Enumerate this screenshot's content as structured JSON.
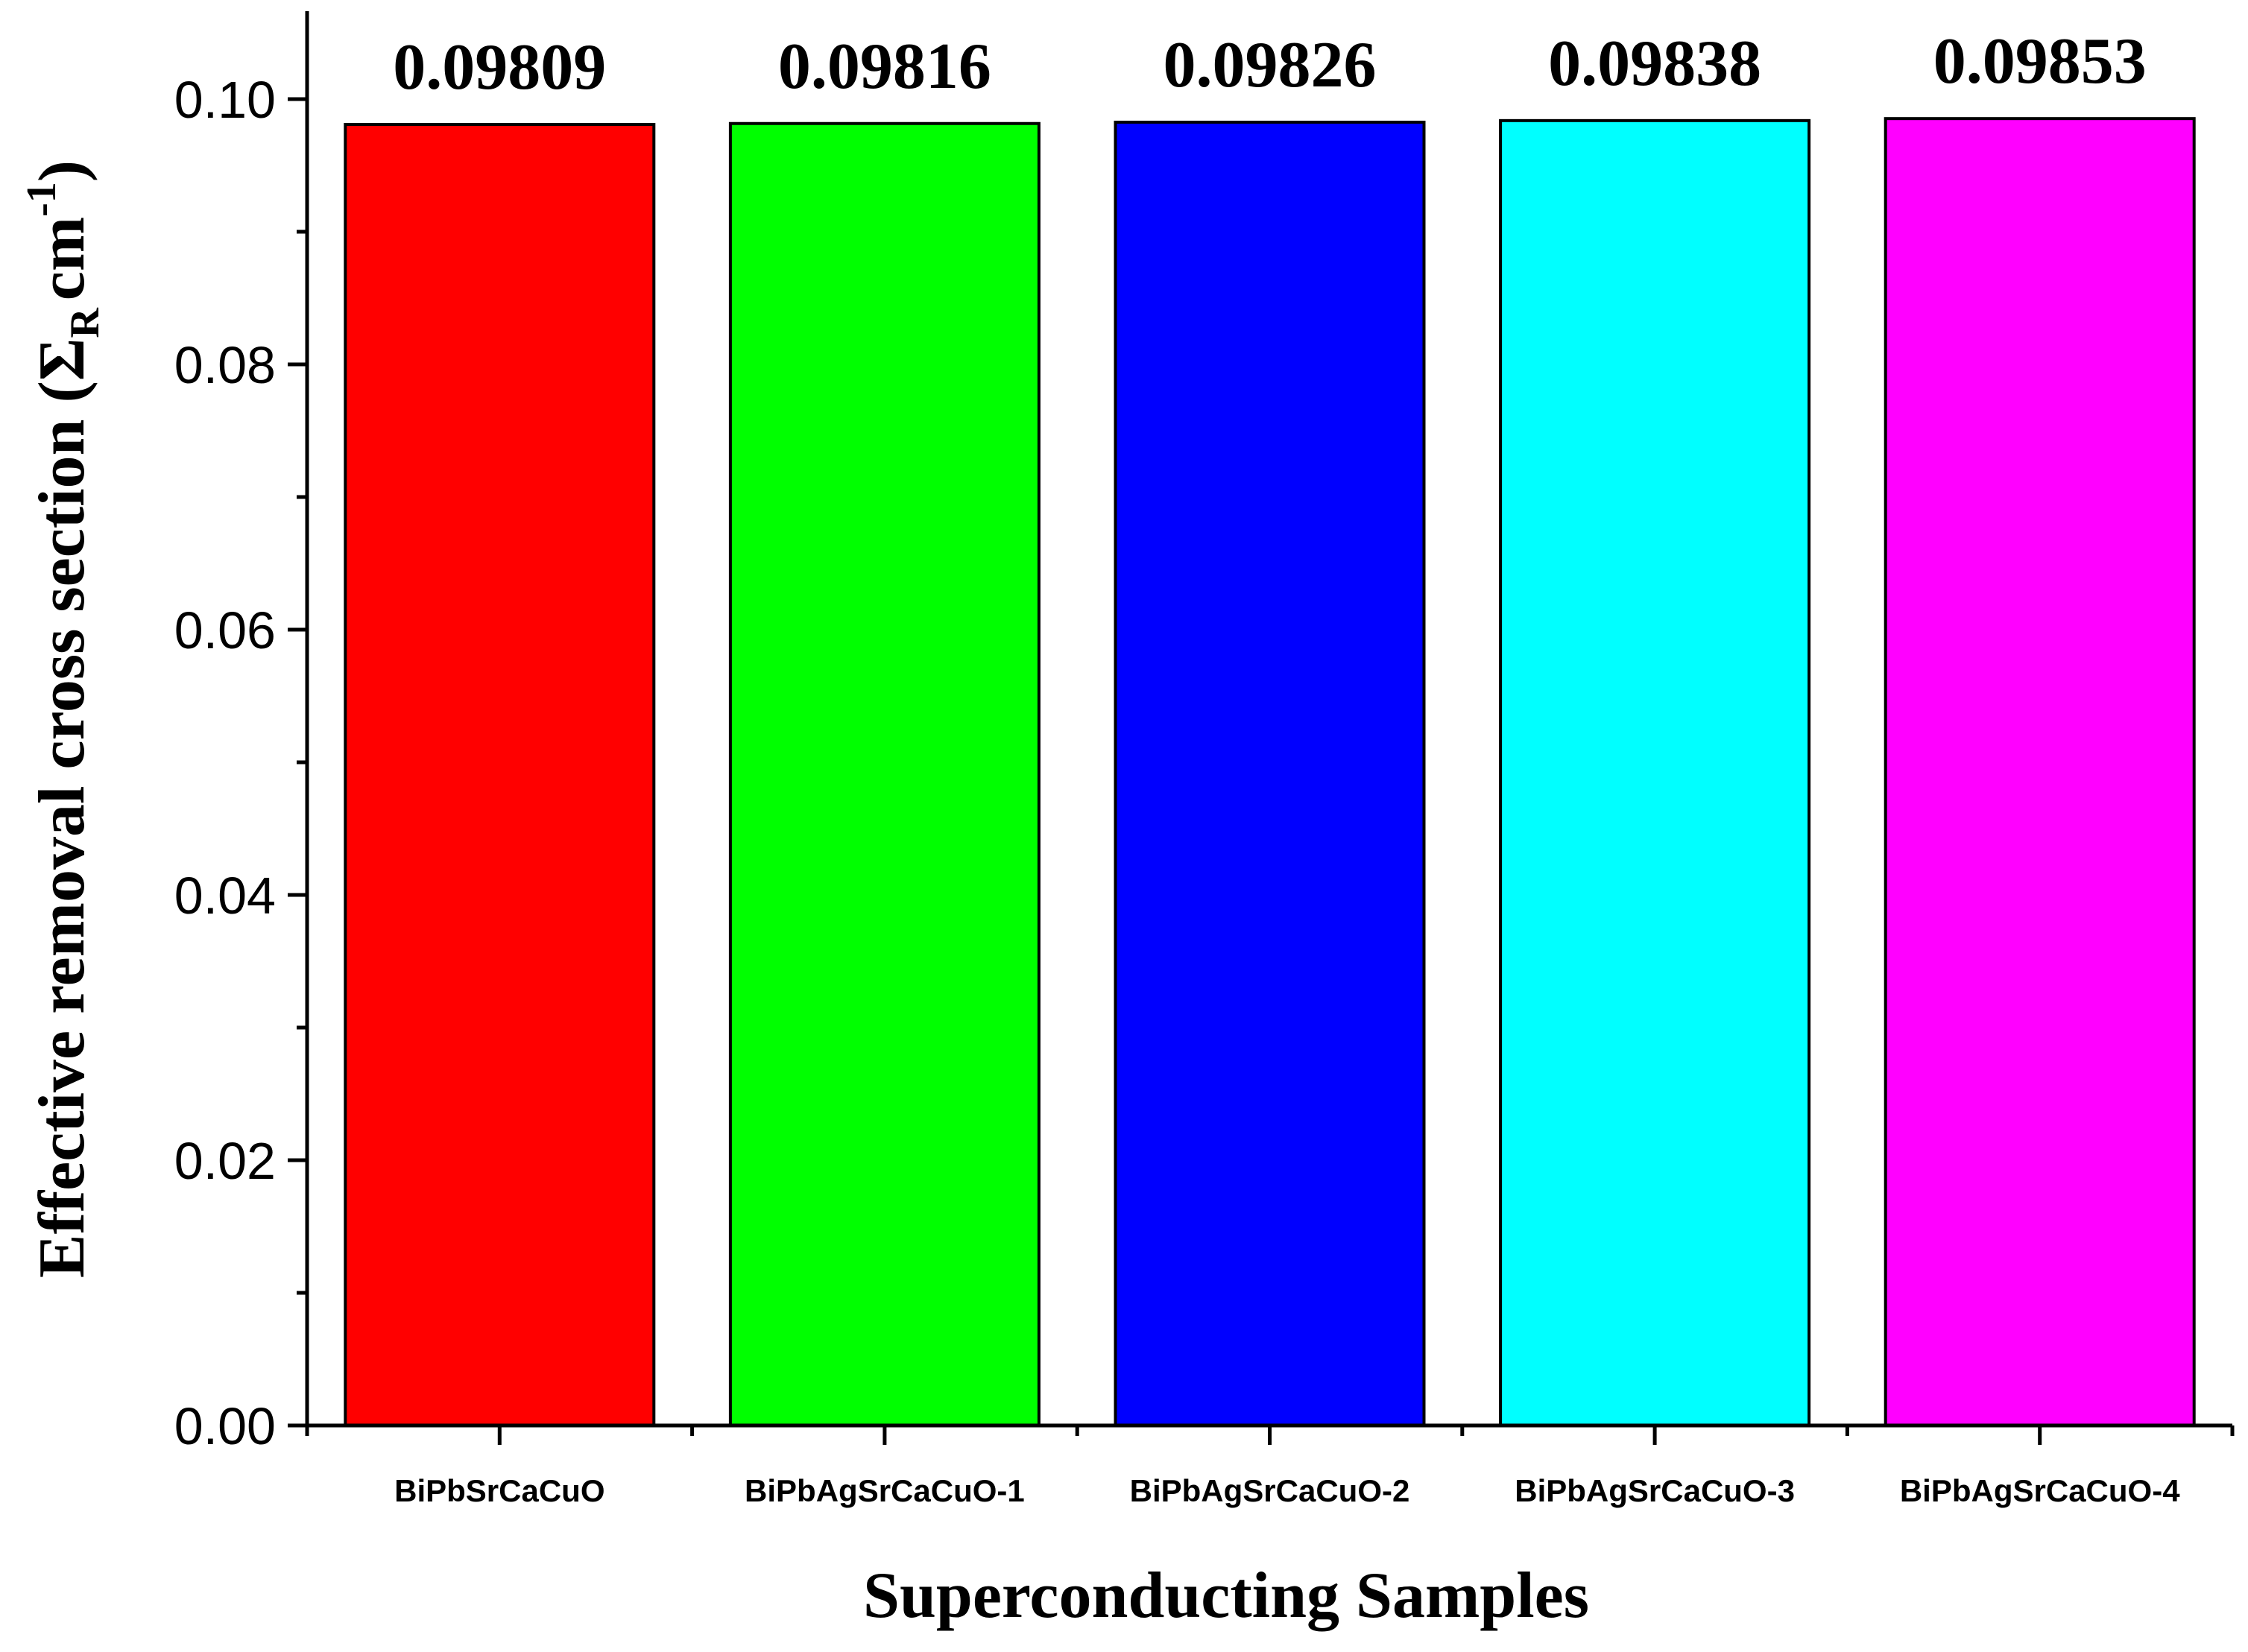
{
  "chart_data": {
    "type": "bar",
    "title": "",
    "xlabel": "Superconducting Samples",
    "ylabel": {
      "prefix": "Effective removal cross section (",
      "symbol": "Σ",
      "subscript": "R",
      "unit": "cm",
      "superscript": "-1",
      "suffix": ")"
    },
    "categories": [
      "BiPbSrCaCuO",
      "BiPbAgSrCaCuO-1",
      "BiPbAgSrCaCuO-2",
      "BiPbAgSrCaCuO-3",
      "BiPbAgSrCaCuO-4"
    ],
    "values": [
      0.09809,
      0.09816,
      0.09826,
      0.09838,
      0.09853
    ],
    "data_labels": [
      "0.09809",
      "0.09816",
      "0.09826",
      "0.09838",
      "0.09853"
    ],
    "colors": [
      "#ff0000",
      "#00ff00",
      "#0000ff",
      "#00ffff",
      "#ff00ff"
    ],
    "ylim": [
      0,
      0.106
    ],
    "yticks": [
      0.0,
      0.02,
      0.04,
      0.06,
      0.08,
      0.1
    ],
    "ytick_labels": [
      "0.00",
      "0.02",
      "0.04",
      "0.06",
      "0.08",
      "0.10"
    ],
    "grid": false,
    "legend": "none"
  }
}
